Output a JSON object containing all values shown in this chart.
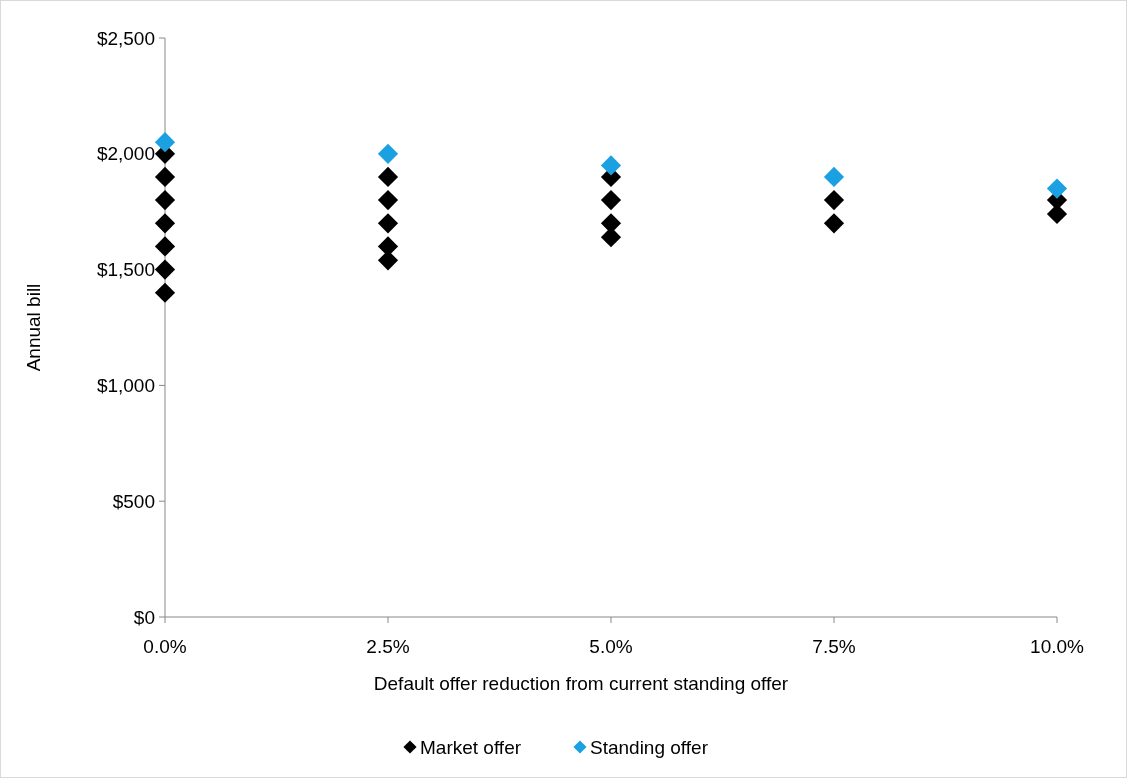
{
  "chart_data": {
    "type": "scatter",
    "xlabel": "Default offer reduction from current standing offer",
    "ylabel": "Annual bill",
    "marker": "diamond",
    "legend": "bottom",
    "grid": false,
    "xlim": [
      0,
      10
    ],
    "xticks": [
      {
        "value": 0,
        "label": "0.0%"
      },
      {
        "value": 2.5,
        "label": "2.5%"
      },
      {
        "value": 5,
        "label": "5.0%"
      },
      {
        "value": 7.5,
        "label": "7.5%"
      },
      {
        "value": 10,
        "label": "10.0%"
      }
    ],
    "ylim": [
      0,
      2500
    ],
    "yticks": [
      {
        "value": 0,
        "label": "$0"
      },
      {
        "value": 500,
        "label": "$500"
      },
      {
        "value": 1000,
        "label": "$1,000"
      },
      {
        "value": 1500,
        "label": "$1,500"
      },
      {
        "value": 2000,
        "label": "$2,000"
      },
      {
        "value": 2500,
        "label": "$2,500"
      }
    ],
    "series": [
      {
        "name": "Market offer",
        "color": "#000000",
        "x": [
          0,
          0,
          0,
          0,
          0,
          0,
          0,
          2.5,
          2.5,
          2.5,
          2.5,
          2.5,
          5,
          5,
          5,
          5,
          7.5,
          7.5,
          10,
          10
        ],
        "values": [
          2000,
          1900,
          1800,
          1700,
          1600,
          1500,
          1400,
          1900,
          1800,
          1700,
          1600,
          1540,
          1900,
          1800,
          1700,
          1640,
          1800,
          1700,
          1800,
          1740
        ]
      },
      {
        "name": "Standing offer",
        "color": "#1ba1e2",
        "x": [
          0,
          2.5,
          5,
          7.5,
          10
        ],
        "values": [
          2050,
          2000,
          1950,
          1900,
          1850
        ]
      }
    ]
  }
}
